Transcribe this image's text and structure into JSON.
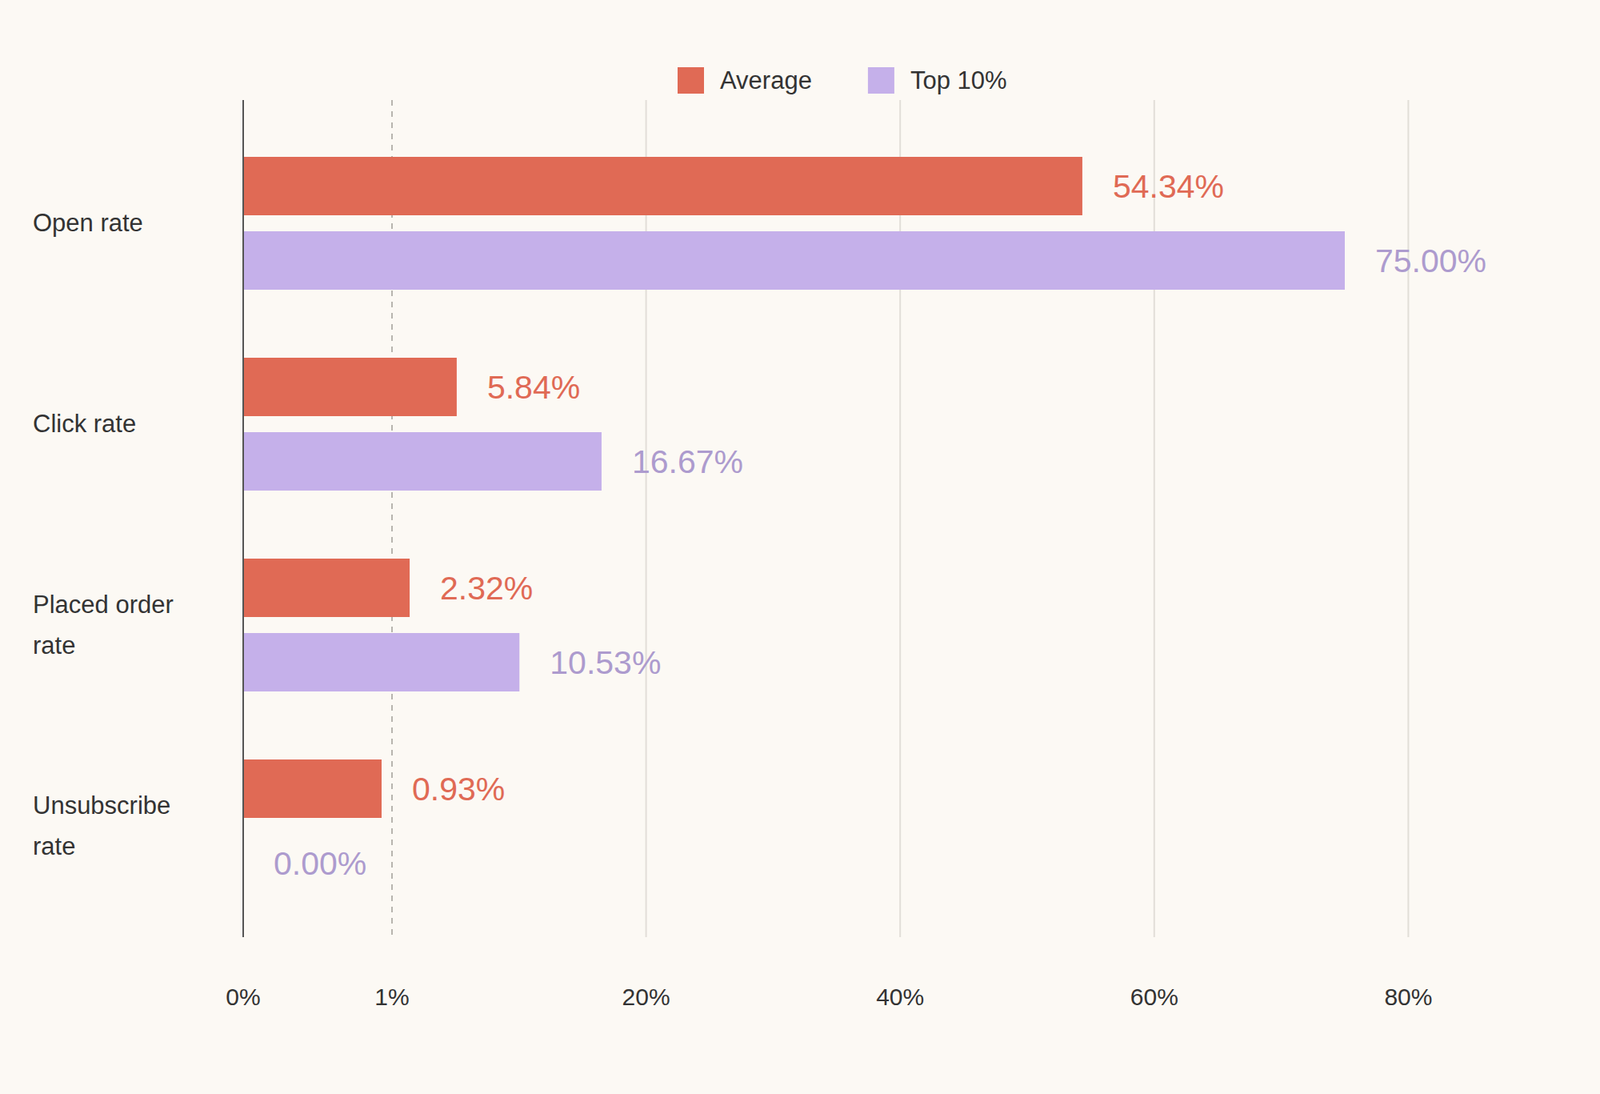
{
  "chart_data": {
    "type": "bar",
    "orientation": "horizontal",
    "categories": [
      "Open rate",
      "Click rate",
      "Placed order rate",
      "Unsubscribe rate"
    ],
    "series": [
      {
        "name": "Average",
        "color": "#e06a55",
        "values": [
          54.34,
          5.84,
          2.32,
          0.93
        ],
        "value_labels": [
          "54.34%",
          "5.84%",
          "2.32%",
          "0.93%"
        ]
      },
      {
        "name": "Top 10%",
        "color": "#c5b0ea",
        "values": [
          75.0,
          16.67,
          10.53,
          0.0
        ],
        "value_labels": [
          "75.00%",
          "16.67%",
          "10.53%",
          "0.00%"
        ]
      }
    ],
    "xlim": [
      0,
      80
    ],
    "xticks": [
      {
        "value": 0,
        "label": "0%"
      },
      {
        "value": 1,
        "label": "1%"
      },
      {
        "value": 20,
        "label": "20%"
      },
      {
        "value": 40,
        "label": "40%"
      },
      {
        "value": 60,
        "label": "60%"
      },
      {
        "value": 80,
        "label": "80%"
      }
    ],
    "grid": true,
    "legend": "top",
    "data_labels": true
  }
}
